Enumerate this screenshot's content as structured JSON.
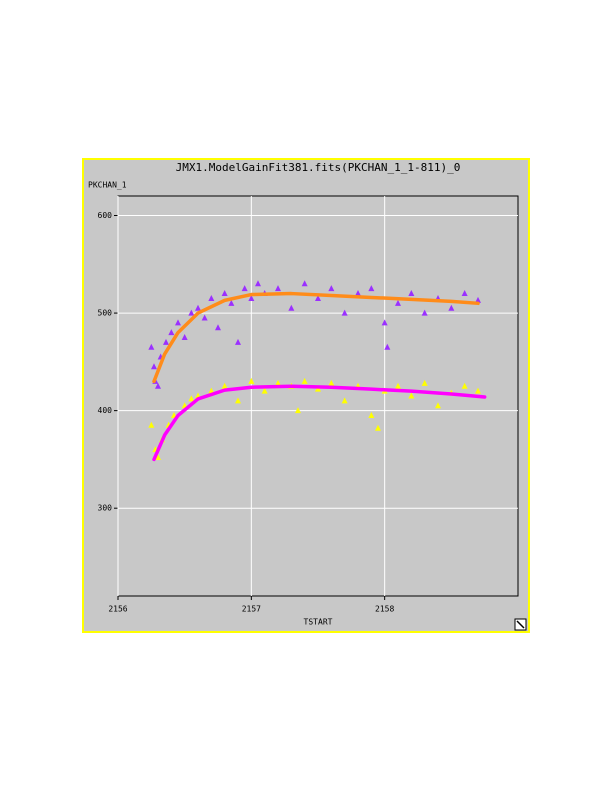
{
  "chart_data": {
    "type": "scatter",
    "title": "JMX1.ModelGainFit381.fits(PKCHAN_1_1-811)_0",
    "y_label": "PKCHAN_1",
    "x_label": "TSTART",
    "xlim": [
      2156,
      2159
    ],
    "ylim": [
      210,
      620
    ],
    "xticks": [
      2156,
      2157,
      2158
    ],
    "yticks": [
      300,
      400,
      500,
      600
    ],
    "grid": true,
    "series": [
      {
        "color": "#9b30ff",
        "style": "points",
        "x": [
          2156.25,
          2156.27,
          2156.28,
          2156.3,
          2156.32,
          2156.36,
          2156.4,
          2156.45,
          2156.5,
          2156.55,
          2156.6,
          2156.65,
          2156.7,
          2156.75,
          2156.8,
          2156.85,
          2156.9,
          2156.95,
          2157.0,
          2157.05,
          2157.1,
          2157.2,
          2157.3,
          2157.4,
          2157.5,
          2157.6,
          2157.7,
          2157.8,
          2157.9,
          2158.0,
          2158.02,
          2158.1,
          2158.2,
          2158.3,
          2158.4,
          2158.5,
          2158.6,
          2158.7
        ],
        "values": [
          465,
          445,
          430,
          425,
          455,
          470,
          480,
          490,
          475,
          500,
          505,
          495,
          515,
          485,
          520,
          510,
          470,
          525,
          515,
          530,
          520,
          525,
          505,
          530,
          515,
          525,
          500,
          520,
          525,
          490,
          465,
          510,
          520,
          500,
          515,
          505,
          520,
          513
        ]
      },
      {
        "color": "#ffff00",
        "style": "points",
        "x": [
          2156.25,
          2156.28,
          2156.3,
          2156.33,
          2156.38,
          2156.42,
          2156.5,
          2156.55,
          2156.6,
          2156.7,
          2156.8,
          2156.9,
          2157.0,
          2157.1,
          2157.2,
          2157.3,
          2157.35,
          2157.4,
          2157.5,
          2157.6,
          2157.7,
          2157.8,
          2157.9,
          2157.95,
          2158.0,
          2158.1,
          2158.2,
          2158.3,
          2158.4,
          2158.5,
          2158.6,
          2158.7
        ],
        "values": [
          385,
          360,
          352,
          370,
          385,
          395,
          405,
          412,
          415,
          420,
          425,
          410,
          430,
          420,
          428,
          425,
          400,
          430,
          422,
          428,
          410,
          425,
          395,
          382,
          420,
          425,
          415,
          428,
          405,
          418,
          425,
          420
        ]
      },
      {
        "color": "#ff8c1a",
        "style": "line",
        "x": [
          2156.27,
          2156.35,
          2156.45,
          2156.6,
          2156.8,
          2157.0,
          2157.3,
          2157.6,
          2157.9,
          2158.2,
          2158.5,
          2158.7
        ],
        "values": [
          430,
          458,
          480,
          500,
          513,
          519,
          520,
          518,
          516,
          514,
          512,
          510
        ]
      },
      {
        "color": "#ff00ff",
        "style": "line",
        "x": [
          2156.27,
          2156.35,
          2156.45,
          2156.6,
          2156.8,
          2157.0,
          2157.3,
          2157.6,
          2157.9,
          2158.2,
          2158.5,
          2158.75
        ],
        "values": [
          350,
          375,
          395,
          412,
          421,
          424,
          425,
          424,
          422,
          420,
          417,
          414
        ]
      }
    ]
  }
}
